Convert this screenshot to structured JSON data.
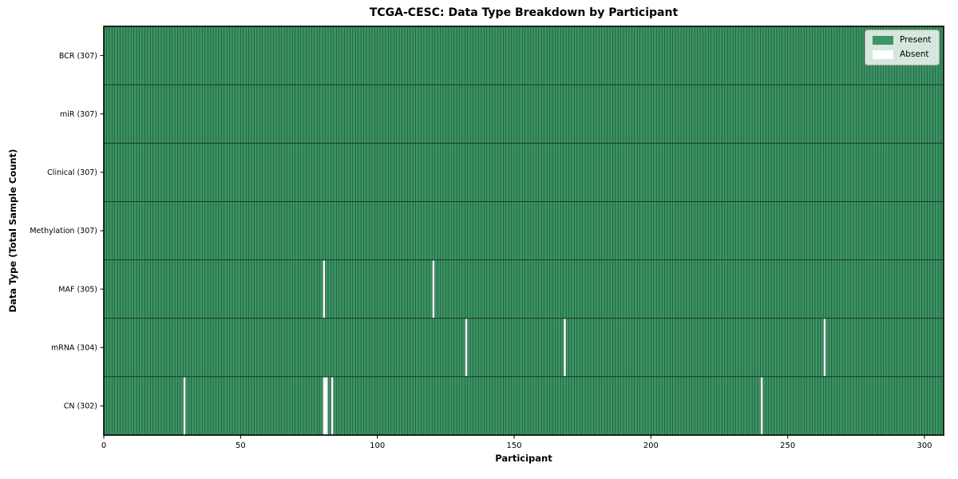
{
  "chart_data": {
    "type": "heatmap",
    "title": "TCGA-CESC: Data Type Breakdown by Participant",
    "xlabel": "Participant",
    "ylabel": "Data Type (Total Sample Count)",
    "n_participants": 307,
    "x_ticks": [
      0,
      50,
      100,
      150,
      200,
      250,
      300
    ],
    "x_range": [
      0,
      307
    ],
    "grid": false,
    "legend_position": "upper right",
    "legend": [
      {
        "label": "Present",
        "color": "#3b9564"
      },
      {
        "label": "Absent",
        "color": "#ffffff"
      }
    ],
    "colors": {
      "present": "#3b9564",
      "absent": "#ffffff",
      "cell_edge": "rgba(0,0,0,0.55)",
      "row_divider": "rgba(0,0,0,0.65)",
      "spine": "#000000"
    },
    "rows": [
      {
        "data_type": "BCR",
        "label": "BCR (307)",
        "total_samples": 307,
        "absent_participants": []
      },
      {
        "data_type": "miR",
        "label": "miR (307)",
        "total_samples": 307,
        "absent_participants": []
      },
      {
        "data_type": "Clinical",
        "label": "Clinical (307)",
        "total_samples": 307,
        "absent_participants": []
      },
      {
        "data_type": "Methylation",
        "label": "Methylation (307)",
        "total_samples": 307,
        "absent_participants": []
      },
      {
        "data_type": "MAF",
        "label": "MAF (305)",
        "total_samples": 305,
        "absent_participants": [
          80,
          120
        ]
      },
      {
        "data_type": "mRNA",
        "label": "mRNA (304)",
        "total_samples": 304,
        "absent_participants": [
          132,
          168,
          263
        ]
      },
      {
        "data_type": "CN",
        "label": "CN (302)",
        "total_samples": 302,
        "absent_participants": [
          29,
          80,
          81,
          83,
          240
        ]
      }
    ]
  }
}
